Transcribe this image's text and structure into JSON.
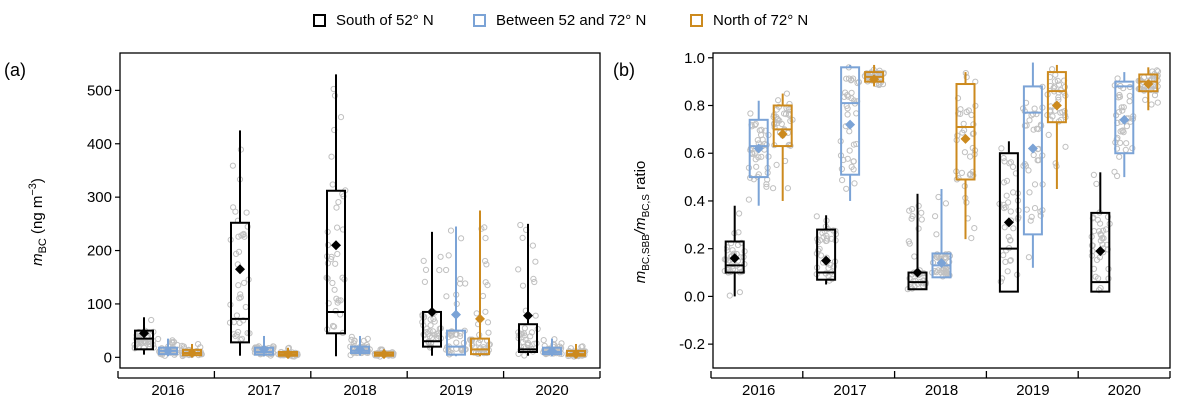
{
  "legend": [
    {
      "label": "South of 52° N",
      "color": "#000000"
    },
    {
      "label": "Between 52 and 72° N",
      "color": "#7ba3d6"
    },
    {
      "label": "North of 72° N",
      "color": "#cc8a1e"
    }
  ],
  "colors": {
    "scatter": "#c0c0c0"
  },
  "chart_data": [
    {
      "type": "box",
      "panel_label": "(a)",
      "ylabel_main": "m",
      "ylabel_sub": "BC",
      "ylabel_unit_open": " (ng m",
      "ylabel_exp": "−3",
      "ylabel_unit_close": ")",
      "ylim": [
        -20,
        570
      ],
      "yticks": [
        0,
        100,
        200,
        300,
        400,
        500
      ],
      "categories": [
        "2016",
        "2017",
        "2018",
        "2019",
        "2020"
      ],
      "series": [
        {
          "name": "South of 52° N",
          "stats": [
            {
              "min": 5,
              "q1": 15,
              "median": 35,
              "q3": 50,
              "max": 75,
              "mean": 45
            },
            {
              "min": 3,
              "q1": 28,
              "median": 72,
              "q3": 252,
              "max": 425,
              "mean": 165
            },
            {
              "min": 2,
              "q1": 45,
              "median": 85,
              "q3": 312,
              "max": 530,
              "mean": 210
            },
            {
              "min": 3,
              "q1": 20,
              "median": 30,
              "q3": 85,
              "max": 235,
              "mean": 85
            },
            {
              "min": 3,
              "q1": 10,
              "median": 15,
              "q3": 62,
              "max": 250,
              "mean": 78
            }
          ]
        },
        {
          "name": "Between 52 and 72° N",
          "stats": [
            {
              "min": 2,
              "q1": 6,
              "median": 12,
              "q3": 18,
              "max": 35,
              "mean": 12
            },
            {
              "min": 2,
              "q1": 5,
              "median": 10,
              "q3": 18,
              "max": 40,
              "mean": 15
            },
            {
              "min": 3,
              "q1": 8,
              "median": 12,
              "q3": 20,
              "max": 40,
              "mean": 15
            },
            {
              "min": 2,
              "q1": 5,
              "median": 20,
              "q3": 50,
              "max": 245,
              "mean": 80
            },
            {
              "min": 2,
              "q1": 6,
              "median": 10,
              "q3": 18,
              "max": 35,
              "mean": 12
            }
          ]
        },
        {
          "name": "North of 72° N",
          "stats": [
            {
              "min": 1,
              "q1": 4,
              "median": 8,
              "q3": 14,
              "max": 25,
              "mean": 8
            },
            {
              "min": 1,
              "q1": 3,
              "median": 6,
              "q3": 10,
              "max": 18,
              "mean": 6
            },
            {
              "min": 1,
              "q1": 3,
              "median": 5,
              "q3": 9,
              "max": 15,
              "mean": 6
            },
            {
              "min": 2,
              "q1": 6,
              "median": 15,
              "q3": 35,
              "max": 275,
              "mean": 72
            },
            {
              "min": 1,
              "q1": 3,
              "median": 6,
              "q3": 12,
              "max": 25,
              "mean": 6
            }
          ]
        }
      ]
    },
    {
      "type": "box",
      "panel_label": "(b)",
      "ylabel_main": "m",
      "ylabel_sub": "BC,SBB",
      "ylabel_mid": "/m",
      "ylabel_sub2": "BC,S",
      "ylabel_tail": " ratio",
      "ylim": [
        -0.3,
        1.02
      ],
      "yticks": [
        -0.2,
        0.0,
        0.2,
        0.4,
        0.6,
        0.8,
        1.0
      ],
      "ytick_labels": [
        "-0.2",
        "0.0",
        "0.2",
        "0.4",
        "0.6",
        "0.8",
        "1.0"
      ],
      "categories": [
        "2016",
        "2017",
        "2018",
        "2019",
        "2020"
      ],
      "series": [
        {
          "name": "South of 52° N",
          "stats": [
            {
              "min": 0.0,
              "q1": 0.1,
              "median": 0.13,
              "q3": 0.23,
              "max": 0.38,
              "mean": 0.16
            },
            {
              "min": 0.05,
              "q1": 0.07,
              "median": 0.1,
              "q3": 0.28,
              "max": 0.34,
              "mean": 0.15
            },
            {
              "min": 0.03,
              "q1": 0.03,
              "median": 0.06,
              "q3": 0.1,
              "max": 0.43,
              "mean": 0.1
            },
            {
              "min": 0.02,
              "q1": 0.02,
              "median": 0.2,
              "q3": 0.6,
              "max": 0.65,
              "mean": 0.31
            },
            {
              "min": 0.02,
              "q1": 0.02,
              "median": 0.06,
              "q3": 0.35,
              "max": 0.52,
              "mean": 0.19
            }
          ]
        },
        {
          "name": "Between 52 and 72° N",
          "stats": [
            {
              "min": 0.38,
              "q1": 0.5,
              "median": 0.63,
              "q3": 0.74,
              "max": 0.82,
              "mean": 0.62
            },
            {
              "min": 0.4,
              "q1": 0.51,
              "median": 0.81,
              "q3": 0.96,
              "max": 0.97,
              "mean": 0.72
            },
            {
              "min": 0.08,
              "q1": 0.08,
              "median": 0.13,
              "q3": 0.18,
              "max": 0.45,
              "mean": 0.14
            },
            {
              "min": 0.12,
              "q1": 0.26,
              "median": 0.77,
              "q3": 0.88,
              "max": 0.98,
              "mean": 0.62
            },
            {
              "min": 0.5,
              "q1": 0.6,
              "median": 0.88,
              "q3": 0.9,
              "max": 0.94,
              "mean": 0.74
            }
          ]
        },
        {
          "name": "North of 72° N",
          "stats": [
            {
              "min": 0.4,
              "q1": 0.63,
              "median": 0.7,
              "q3": 0.8,
              "max": 0.85,
              "mean": 0.68
            },
            {
              "min": 0.88,
              "q1": 0.9,
              "median": 0.92,
              "q3": 0.94,
              "max": 0.97,
              "mean": 0.91
            },
            {
              "min": 0.24,
              "q1": 0.49,
              "median": 0.71,
              "q3": 0.89,
              "max": 0.94,
              "mean": 0.66
            },
            {
              "min": 0.45,
              "q1": 0.73,
              "median": 0.86,
              "q3": 0.94,
              "max": 0.97,
              "mean": 0.8
            },
            {
              "min": 0.78,
              "q1": 0.86,
              "median": 0.9,
              "q3": 0.93,
              "max": 0.96,
              "mean": 0.89
            }
          ]
        }
      ]
    }
  ]
}
